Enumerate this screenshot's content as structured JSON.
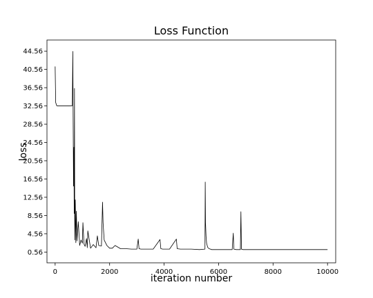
{
  "chart_data": {
    "type": "line",
    "title": "Loss Function",
    "xlabel": "iteration number",
    "ylabel": "loss",
    "xlim": [
      -300,
      10300
    ],
    "ylim": [
      -1.8,
      47.0
    ],
    "xticks": [
      0,
      2000,
      4000,
      6000,
      8000,
      10000
    ],
    "xtick_labels": [
      "0",
      "2000",
      "4000",
      "6000",
      "8000",
      "10000"
    ],
    "yticks": [
      0.56,
      4.56,
      8.56,
      12.56,
      16.56,
      20.56,
      24.56,
      28.56,
      32.56,
      36.56,
      40.56,
      44.56
    ],
    "ytick_labels": [
      "0.56",
      "4.56",
      "8.56",
      "12.56",
      "16.56",
      "20.56",
      "24.56",
      "28.56",
      "32.56",
      "36.56",
      "40.56",
      "44.56"
    ],
    "grid": false,
    "legend": "none",
    "line_color": "#000000",
    "series": [
      {
        "x": [
          0,
          20,
          60,
          150,
          300,
          450,
          600,
          630,
          650,
          660,
          675,
          690,
          700,
          710,
          720,
          740,
          760,
          780,
          800,
          850,
          900,
          950,
          1000,
          1020,
          1060,
          1100,
          1150,
          1180,
          1200,
          1300,
          1400,
          1500,
          1550,
          1600,
          1700,
          1740,
          1760,
          1800,
          1900,
          2000,
          2100,
          2200,
          2400,
          2600,
          2800,
          3000,
          3050,
          3080,
          3150,
          3300,
          3600,
          3850,
          3880,
          3950,
          4200,
          4450,
          4480,
          4600,
          5000,
          5300,
          5500,
          5510,
          5520,
          5540,
          5560,
          5600,
          5650,
          5700,
          5750,
          5800,
          5900,
          6000,
          6200,
          6500,
          6540,
          6560,
          6650,
          6800,
          6820,
          6840,
          6900,
          7200,
          7600,
          8000,
          8400,
          8800,
          9200,
          9600,
          10000
        ],
        "y": [
          41.2,
          33.3,
          32.6,
          32.56,
          32.56,
          32.56,
          32.6,
          32.6,
          44.5,
          30.5,
          15.0,
          23.5,
          9.0,
          36.4,
          3.2,
          12.0,
          2.6,
          9.5,
          3.0,
          7.2,
          2.0,
          3.2,
          2.5,
          7.0,
          2.3,
          1.8,
          3.5,
          1.5,
          5.2,
          1.4,
          2.2,
          1.5,
          4.1,
          2.0,
          1.9,
          11.5,
          7.0,
          3.2,
          2.0,
          1.4,
          1.4,
          2.0,
          1.3,
          1.3,
          1.2,
          1.2,
          3.4,
          1.3,
          1.2,
          1.2,
          1.2,
          3.3,
          1.3,
          1.2,
          1.2,
          3.4,
          1.3,
          1.2,
          1.2,
          1.1,
          1.2,
          15.9,
          7.0,
          4.0,
          2.5,
          1.6,
          1.3,
          1.2,
          1.1,
          1.1,
          1.1,
          1.1,
          1.1,
          1.1,
          4.7,
          1.2,
          1.1,
          1.1,
          9.4,
          1.2,
          1.1,
          1.1,
          1.1,
          1.1,
          1.1,
          1.1,
          1.1,
          1.1,
          1.1
        ]
      }
    ]
  }
}
